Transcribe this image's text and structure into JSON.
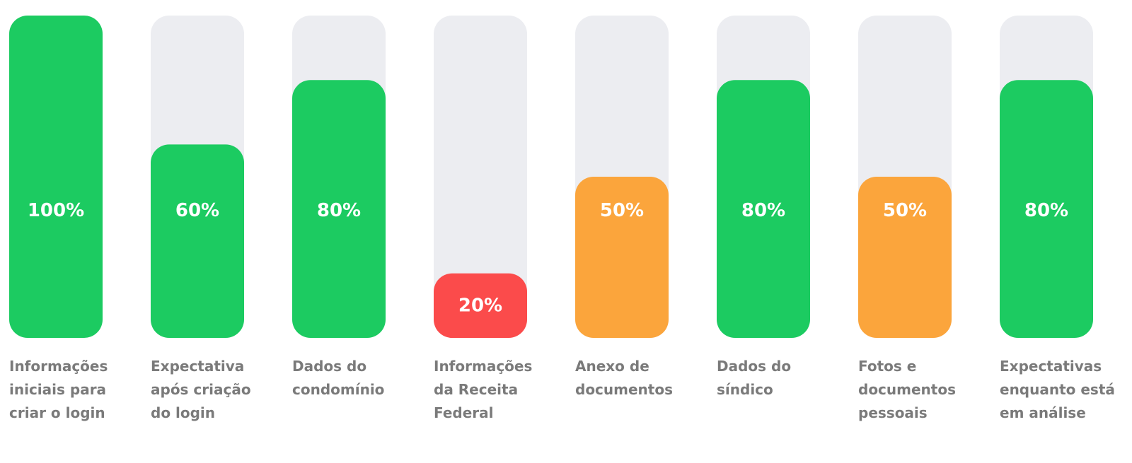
{
  "chart_data": {
    "type": "bar",
    "categories": [
      "Informações iniciais para criar o login",
      "Expectativa após criação do login",
      "Dados do condomínio",
      "Informações da Receita Federal",
      "Anexo de documentos",
      "Dados do síndico",
      "Fotos e documentos pessoais",
      "Expectativas enquanto está em análise"
    ],
    "category_lines": [
      [
        "Informações",
        "iniciais para",
        "criar o login"
      ],
      [
        "Expectativa",
        "após criação",
        "do login"
      ],
      [
        "Dados do",
        "condomínio"
      ],
      [
        "Informações",
        "da Receita",
        "Federal"
      ],
      [
        "Anexo de",
        "documentos"
      ],
      [
        "Dados do",
        "síndico"
      ],
      [
        "Fotos e",
        "documentos",
        "pessoais"
      ],
      [
        "Expectativas",
        "enquanto está",
        "em análise"
      ]
    ],
    "values": [
      100,
      60,
      80,
      20,
      50,
      80,
      50,
      80
    ],
    "value_labels": [
      "100%",
      "60%",
      "80%",
      "20%",
      "50%",
      "80%",
      "50%",
      "80%"
    ],
    "ylim": [
      0,
      100
    ],
    "grid": false,
    "colors": {
      "track": "#ecedf1",
      "high": "#1ccb61",
      "medium": "#fba53c",
      "low": "#fb4b4b",
      "label": "#7a7a7a",
      "value_text": "#ffffff"
    },
    "bar_colors": [
      "#1ccb61",
      "#1ccb61",
      "#1ccb61",
      "#fb4b4b",
      "#fba53c",
      "#1ccb61",
      "#fba53c",
      "#1ccb61"
    ]
  }
}
